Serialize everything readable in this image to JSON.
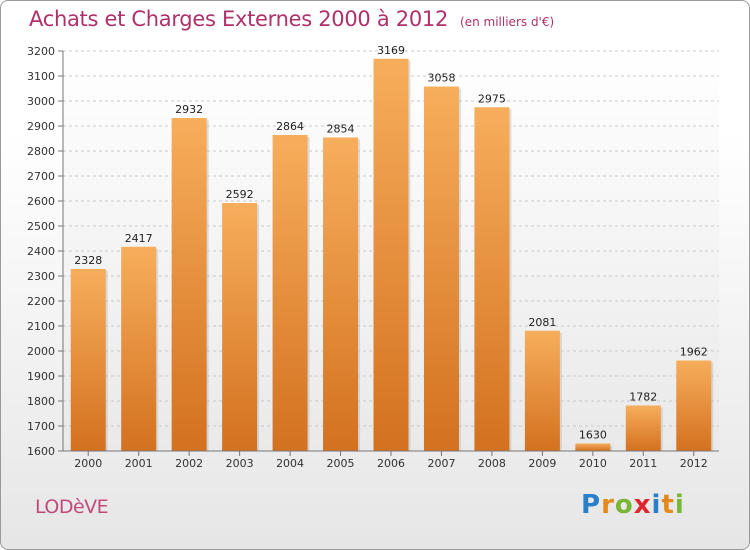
{
  "title": "Achats et Charges Externes 2000 à 2012",
  "unit": "(en milliers d'€)",
  "place": "LODèVE",
  "logo": {
    "letters": [
      "P",
      "r",
      "o",
      "x",
      "i",
      "t",
      "i"
    ],
    "colors": [
      "#2a7fc9",
      "#e38a1c",
      "#7ab536",
      "#e0262d",
      "#2a7fc9",
      "#e38a1c",
      "#7ab536"
    ]
  },
  "colors": {
    "bar_top": "#f7ae5c",
    "bar_bottom": "#d3711f",
    "text": "#b0306a"
  },
  "chart_data": {
    "type": "bar",
    "categories": [
      "2000",
      "2001",
      "2002",
      "2003",
      "2004",
      "2005",
      "2006",
      "2007",
      "2008",
      "2009",
      "2010",
      "2011",
      "2012"
    ],
    "values": [
      2328,
      2417,
      2932,
      2592,
      2864,
      2854,
      3169,
      3058,
      2975,
      2081,
      1630,
      1782,
      1962
    ],
    "ylim": [
      1600,
      3200
    ],
    "yticks": [
      1600,
      1700,
      1800,
      1900,
      2000,
      2100,
      2200,
      2300,
      2400,
      2500,
      2600,
      2700,
      2800,
      2900,
      3000,
      3100,
      3200
    ],
    "grid": true
  }
}
